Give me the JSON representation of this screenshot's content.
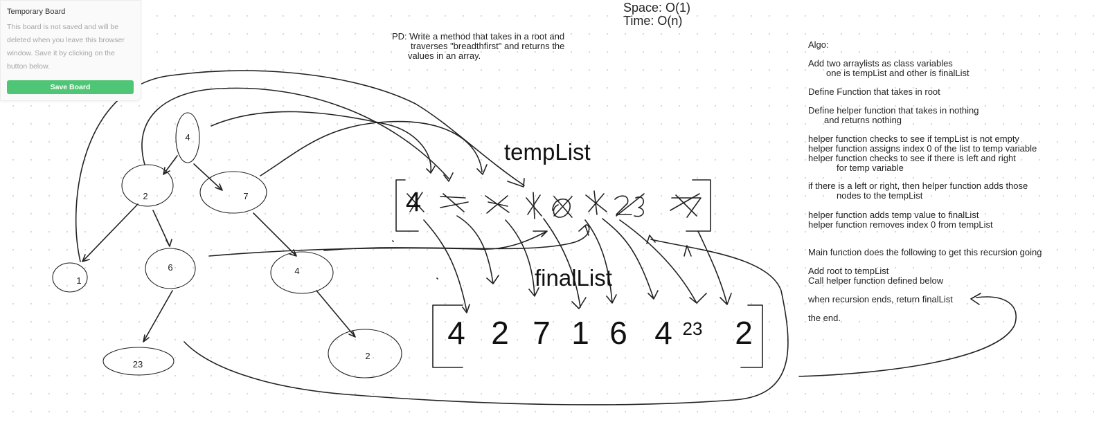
{
  "panel": {
    "title": "Temporary Board",
    "description": "This board is not saved and will be deleted when you leave this browser window. Save it by clicking on the button below.",
    "save_button": "Save Board"
  },
  "complexity": {
    "space": "Space: O(1)",
    "time": "Time: O(n)"
  },
  "problem": {
    "line1": "PD: Write a method that takes in a root and",
    "line2": "traverses \"breadthfirst\" and returns the",
    "line3": "values in an array."
  },
  "labels": {
    "temp_list": "tempList",
    "final_list": "finalList"
  },
  "tree_nodes": [
    "4",
    "2",
    "7",
    "1",
    "6",
    "4",
    "23",
    "2"
  ],
  "temp_list_values": [
    "4",
    "2",
    "7",
    "1",
    "6",
    "4",
    "23",
    "2"
  ],
  "final_list_values": [
    "4",
    "2",
    "7",
    "1",
    "6",
    "4",
    "23",
    "2"
  ],
  "algo": [
    "Algo:",
    "Add two arraylists as class variables",
    "one is tempList and other is finalList",
    "Define Function that takes in root",
    "Define helper function that takes in nothing",
    "and returns nothing",
    "helper function checks to see if tempList is not empty",
    "helper function assigns index 0 of the list to temp variable",
    "helper function checks to see if there is left and right",
    "for temp variable",
    "if there is a left or right, then helper function adds those",
    "nodes to the tempList",
    "helper function adds temp value to finalList",
    "helper function removes index 0 from tempList",
    "Main function does the following to get this recursion going",
    "Add root to tempList",
    "Call helper function defined below",
    "when recursion ends, return finalList",
    "the end."
  ],
  "colors": {
    "ink": "#222222",
    "button": "#4fc675",
    "panel_bg": "#fafafa",
    "dot_grid": "#d7d7d7"
  }
}
